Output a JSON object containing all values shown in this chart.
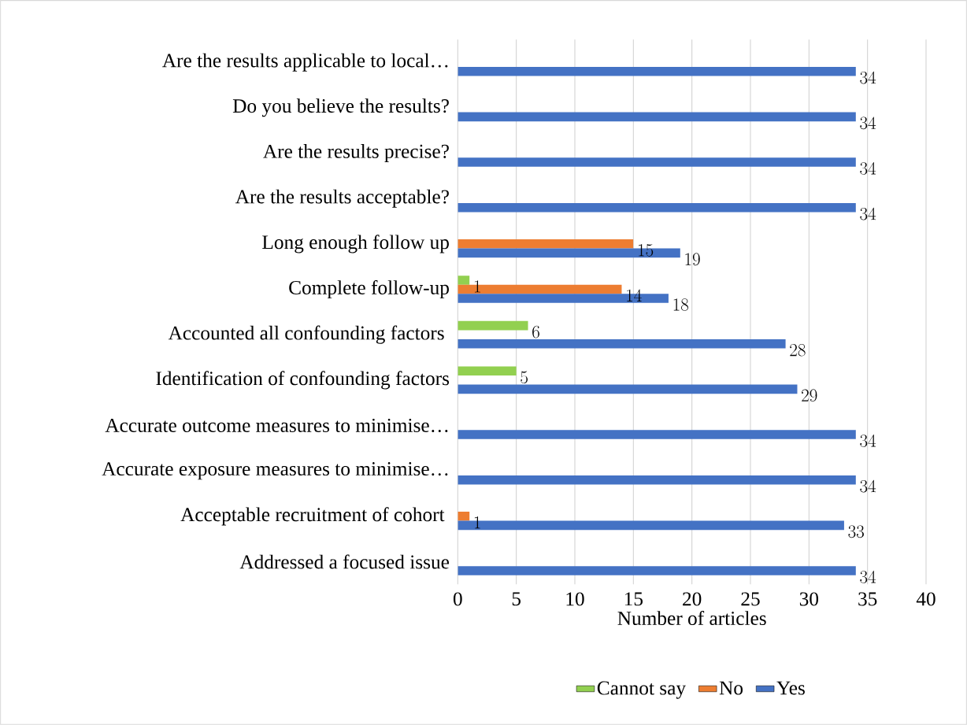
{
  "chart_data": {
    "type": "bar",
    "orientation": "horizontal",
    "xlabel": "Number of articles",
    "categories": [
      "Are the results applicable to local…",
      "Do you believe the results?",
      "Are the results precise?",
      "Are the results acceptable?",
      "Long enough follow up",
      "Complete follow-up",
      "Accounted all confounding factors ",
      "Identification of confounding factors",
      "Accurate outcome measures to minimise…",
      "Accurate exposure measures to minimise…",
      "Acceptable recruitment of cohort ",
      "Addressed a focused issue"
    ],
    "series": [
      {
        "name": "Cannot say",
        "color": "#92d050",
        "values": [
          null,
          null,
          null,
          null,
          null,
          1,
          6,
          5,
          null,
          null,
          null,
          null
        ]
      },
      {
        "name": "No",
        "color": "#ed7d31",
        "values": [
          null,
          null,
          null,
          null,
          15,
          14,
          null,
          null,
          null,
          null,
          1,
          null
        ]
      },
      {
        "name": "Yes",
        "color": "#4472c4",
        "values": [
          34,
          34,
          34,
          34,
          19,
          18,
          28,
          29,
          34,
          34,
          33,
          34
        ]
      }
    ],
    "xlim": [
      0,
      40
    ],
    "xticks": [
      0,
      5,
      10,
      15,
      20,
      25,
      30,
      35,
      40
    ],
    "grid": "x",
    "legend": "bottom",
    "data_labels": true
  }
}
